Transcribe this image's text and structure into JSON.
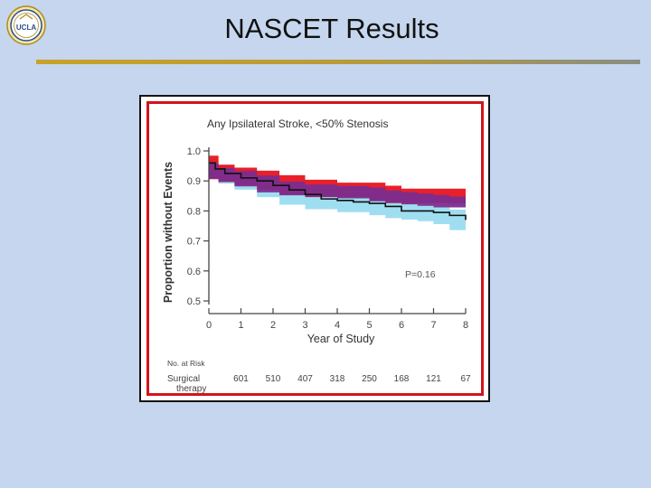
{
  "slide": {
    "title": "NASCET Results",
    "logo_text": "UCLA",
    "background_color": "#c5d6ee",
    "rule_color": "#c9a227"
  },
  "chart_data": {
    "type": "line",
    "title": "Any Ipsilateral Stroke, <50% Stenosis",
    "xlabel": "Year of Study",
    "ylabel": "Proportion without Events",
    "xlim": [
      0,
      8
    ],
    "ylim": [
      0.5,
      1.0
    ],
    "x_ticks": [
      "0",
      "1",
      "2",
      "3",
      "4",
      "5",
      "6",
      "7",
      "8"
    ],
    "y_ticks": [
      "1.0",
      "0.9",
      "0.8",
      "0.7",
      "0.6",
      "0.5"
    ],
    "annotation": "P=0.16",
    "series": [
      {
        "color": "#e8141e",
        "band": true,
        "x": [
          0,
          0.3,
          0.8,
          1.5,
          2.2,
          3.0,
          4.0,
          5.0,
          5.5,
          6.0,
          6.5,
          7.0,
          7.5,
          8.0
        ],
        "values": [
          0.96,
          0.93,
          0.92,
          0.91,
          0.895,
          0.88,
          0.87,
          0.87,
          0.86,
          0.85,
          0.85,
          0.85,
          0.85,
          0.85
        ]
      },
      {
        "color": "#7b2d8e",
        "band": true,
        "x": [
          0,
          0.3,
          0.8,
          1.5,
          2.2,
          3.0,
          4.0,
          5.0,
          5.5,
          6.0,
          6.5,
          7.0,
          7.5,
          8.0
        ],
        "values": [
          0.94,
          0.925,
          0.915,
          0.9,
          0.88,
          0.87,
          0.865,
          0.86,
          0.85,
          0.845,
          0.84,
          0.835,
          0.83,
          0.83
        ]
      },
      {
        "color": "#8ed8ee",
        "band": true,
        "x": [
          0,
          0.3,
          0.8,
          1.5,
          2.2,
          3.0,
          4.0,
          5.0,
          5.5,
          6.0,
          6.5,
          7.0,
          7.5,
          8.0
        ],
        "values": [
          0.95,
          0.93,
          0.915,
          0.895,
          0.87,
          0.845,
          0.83,
          0.82,
          0.81,
          0.8,
          0.795,
          0.79,
          0.78,
          0.76
        ]
      },
      {
        "color": "#111111",
        "band": false,
        "x": [
          0,
          0.2,
          0.5,
          1.0,
          1.5,
          2.0,
          2.5,
          3.0,
          3.5,
          4.0,
          4.5,
          5.0,
          5.5,
          6.0,
          6.5,
          7.0,
          7.5,
          8.0
        ],
        "values": [
          0.96,
          0.94,
          0.925,
          0.91,
          0.9,
          0.885,
          0.87,
          0.855,
          0.84,
          0.835,
          0.83,
          0.825,
          0.815,
          0.8,
          0.8,
          0.795,
          0.785,
          0.77
        ]
      }
    ],
    "risk_table": {
      "header": "No. at Risk",
      "row_label_line1": "Surgical",
      "row_label_line2": "therapy",
      "values": [
        "601",
        "510",
        "407",
        "318",
        "250",
        "168",
        "121",
        "67"
      ]
    }
  }
}
